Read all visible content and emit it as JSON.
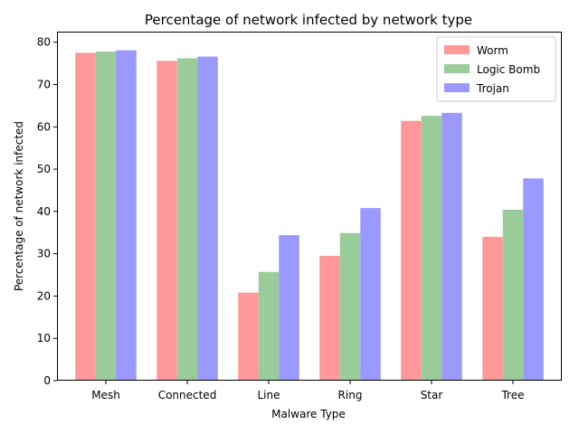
{
  "chart_data": {
    "type": "bar",
    "title": "Percentage of network infected by network type",
    "xlabel": "Malware Type",
    "ylabel": "Percentage of network infected",
    "categories": [
      "Mesh",
      "Connected",
      "Line",
      "Ring",
      "Star",
      "Tree"
    ],
    "series": [
      {
        "name": "Worm",
        "color": "#ff9999",
        "values": [
          77.5,
          75.6,
          20.8,
          29.5,
          61.4,
          34.0
        ]
      },
      {
        "name": "Logic Bomb",
        "color": "#99cc99",
        "values": [
          77.8,
          76.2,
          25.7,
          34.9,
          62.6,
          40.4
        ]
      },
      {
        "name": "Trojan",
        "color": "#9999ff",
        "values": [
          78.1,
          76.6,
          34.4,
          40.8,
          63.3,
          47.8
        ]
      }
    ],
    "ylim": [
      0,
      82.5
    ],
    "yticks": [
      0,
      10,
      20,
      30,
      40,
      50,
      60,
      70,
      80
    ],
    "legend_position": "top-right",
    "grid": false
  }
}
